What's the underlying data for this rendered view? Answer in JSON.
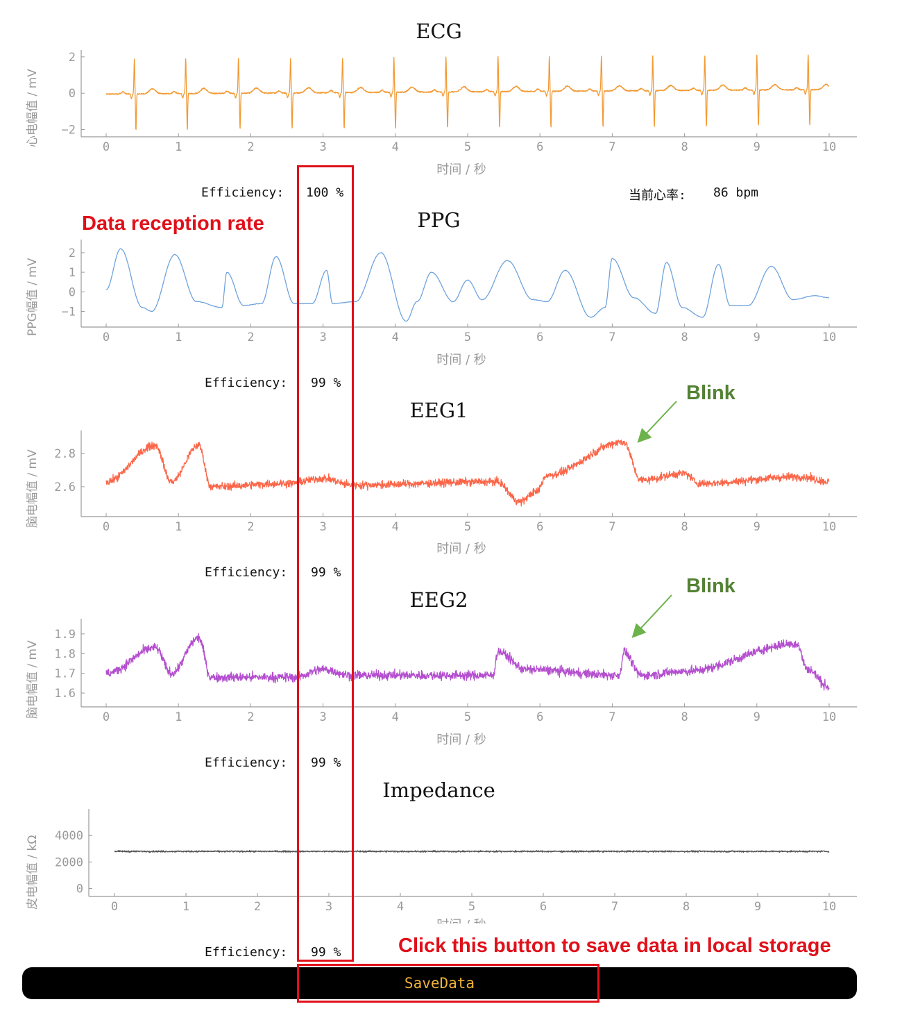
{
  "colors": {
    "ecg": "#f29a34",
    "ppg": "#6fa3dc",
    "eeg1": "#fb6649",
    "eeg2": "#b44fcf",
    "impedance": "#555555",
    "annotation_red": "#e0101a",
    "annotation_green": "#548235",
    "button_text": "#f0b23a"
  },
  "x_axis": {
    "label": "时间 / 秒",
    "ticks": [
      "0",
      "1",
      "2",
      "3",
      "4",
      "5",
      "6",
      "7",
      "8",
      "9",
      "10"
    ],
    "xlim": [
      0,
      10
    ]
  },
  "panels": [
    {
      "id": "ecg",
      "title": "ECG",
      "ylabel": "心电幅值 / mV",
      "yticks": [
        "2",
        "0",
        "−2"
      ],
      "ytick_values": [
        2,
        0,
        -2
      ],
      "ylim": [
        -2.4,
        2.3
      ],
      "efficiency_label": "Efficiency:",
      "efficiency_value": "100 %"
    },
    {
      "id": "ppg",
      "title": "PPG",
      "ylabel": "PPG幅值 / mV",
      "yticks": [
        "2",
        "1",
        "0",
        "−1"
      ],
      "ytick_values": [
        2,
        1,
        0,
        -1
      ],
      "ylim": [
        -1.8,
        2.6
      ],
      "efficiency_label": "Efficiency:",
      "efficiency_value": "99 %"
    },
    {
      "id": "eeg1",
      "title": "EEG1",
      "ylabel": "脑电幅值 / mV",
      "yticks": [
        "2.8",
        "2.6"
      ],
      "ytick_values": [
        2.8,
        2.6
      ],
      "ylim": [
        2.42,
        2.93
      ],
      "efficiency_label": "Efficiency:",
      "efficiency_value": "99 %"
    },
    {
      "id": "eeg2",
      "title": "EEG2",
      "ylabel": "脑电幅值 / mV",
      "yticks": [
        "1.9",
        "1.8",
        "1.7",
        "1.6"
      ],
      "ytick_values": [
        1.9,
        1.8,
        1.7,
        1.6
      ],
      "ylim": [
        1.53,
        1.97
      ],
      "efficiency_label": "Efficiency:",
      "efficiency_value": "99 %"
    },
    {
      "id": "impedance",
      "title": "Impedance",
      "ylabel": "皮电幅值 / kΩ",
      "yticks": [
        "4000",
        "2000",
        "0"
      ],
      "ytick_values": [
        4000,
        2000,
        0
      ],
      "ylim": [
        -600,
        5900
      ],
      "efficiency_label": "Efficiency:",
      "efficiency_value": "99 %"
    }
  ],
  "heart_rate": {
    "label": "当前心率:",
    "value": "86 bpm"
  },
  "annotations": {
    "reception_rate": "Data reception rate",
    "blink_1": "Blink",
    "blink_2": "Blink",
    "save_hint": "Click this button to save data in local storage"
  },
  "button": {
    "label": "SaveData"
  },
  "chart_data": [
    {
      "type": "line",
      "title": "ECG",
      "xlabel": "时间 / 秒",
      "ylabel": "心电幅值 / mV",
      "xlim": [
        0,
        10
      ],
      "ylim": [
        -2.4,
        2.3
      ],
      "series": [
        {
          "name": "ECG",
          "x": [
            0,
            10
          ],
          "y": [
            -0.05,
            0.2
          ],
          "r_peak_times": [
            0.39,
            1.1,
            1.83,
            2.55,
            3.27,
            3.98,
            4.7,
            5.42,
            6.13,
            6.85,
            7.56,
            8.28,
            9.0,
            9.71
          ],
          "r_peak_amplitude": 1.9,
          "s_trough_amplitude": -2.0
        }
      ]
    },
    {
      "type": "line",
      "title": "PPG",
      "xlabel": "时间 / 秒",
      "ylabel": "PPG幅值 / mV",
      "xlim": [
        0,
        10
      ],
      "ylim": [
        -1.8,
        2.6
      ],
      "series": [
        {
          "name": "PPG",
          "x": [
            0,
            0.2,
            0.5,
            0.63,
            0.95,
            1.25,
            1.6,
            1.67,
            1.9,
            2.15,
            2.35,
            2.6,
            2.85,
            3.05,
            3.13,
            3.45,
            3.8,
            4.15,
            4.3,
            4.5,
            4.8,
            5.0,
            5.2,
            5.55,
            5.9,
            6.1,
            6.35,
            6.7,
            6.9,
            7.0,
            7.3,
            7.6,
            7.75,
            7.97,
            8.25,
            8.47,
            8.63,
            8.88,
            9.2,
            9.5,
            9.8,
            10
          ],
          "y": [
            0.1,
            2.2,
            -0.8,
            -1.0,
            1.9,
            -0.5,
            -0.8,
            1.0,
            -0.7,
            -0.6,
            1.8,
            -0.6,
            -0.6,
            1.1,
            -0.6,
            -0.5,
            2.0,
            -1.5,
            -0.5,
            1.0,
            -0.5,
            0.6,
            -0.4,
            1.6,
            -0.4,
            -0.5,
            1.1,
            -1.3,
            -0.8,
            1.7,
            -0.3,
            -1.1,
            1.5,
            -0.8,
            -1.3,
            1.4,
            -0.7,
            -0.7,
            1.3,
            -0.4,
            -0.2,
            -0.3
          ]
        }
      ]
    },
    {
      "type": "line",
      "title": "EEG1",
      "xlabel": "时间 / 秒",
      "ylabel": "脑电幅值 / mV",
      "xlim": [
        0,
        10
      ],
      "ylim": [
        2.42,
        2.93
      ],
      "series": [
        {
          "name": "EEG1",
          "x": [
            0,
            0.68,
            0.9,
            1.28,
            1.45,
            2.5,
            3.0,
            3.4,
            5.4,
            5.72,
            5.95,
            6.1,
            7.15,
            7.4,
            8.0,
            8.2,
            9.6,
            10
          ],
          "y": [
            2.63,
            2.85,
            2.63,
            2.85,
            2.6,
            2.62,
            2.65,
            2.61,
            2.63,
            2.51,
            2.57,
            2.67,
            2.87,
            2.64,
            2.68,
            2.62,
            2.66,
            2.63
          ]
        }
      ]
    },
    {
      "type": "line",
      "title": "EEG2",
      "xlabel": "时间 / 秒",
      "ylabel": "脑电幅值 / mV",
      "xlim": [
        0,
        10
      ],
      "ylim": [
        1.53,
        1.97
      ],
      "series": [
        {
          "name": "EEG2",
          "x": [
            0,
            0.68,
            0.9,
            1.28,
            1.45,
            2.6,
            3.0,
            3.4,
            5.35,
            5.42,
            5.8,
            7.1,
            7.16,
            7.4,
            8.0,
            9.55,
            9.7,
            10
          ],
          "y": [
            1.7,
            1.83,
            1.7,
            1.88,
            1.68,
            1.68,
            1.72,
            1.69,
            1.69,
            1.81,
            1.72,
            1.69,
            1.81,
            1.69,
            1.71,
            1.85,
            1.72,
            1.63
          ]
        }
      ]
    },
    {
      "type": "line",
      "title": "Impedance",
      "xlabel": "时间 / 秒",
      "ylabel": "皮电幅值 / kΩ",
      "xlim": [
        0,
        10
      ],
      "ylim": [
        -600,
        5900
      ],
      "series": [
        {
          "name": "Impedance",
          "x": [
            0,
            10
          ],
          "y": [
            2800,
            2800
          ]
        }
      ]
    }
  ]
}
